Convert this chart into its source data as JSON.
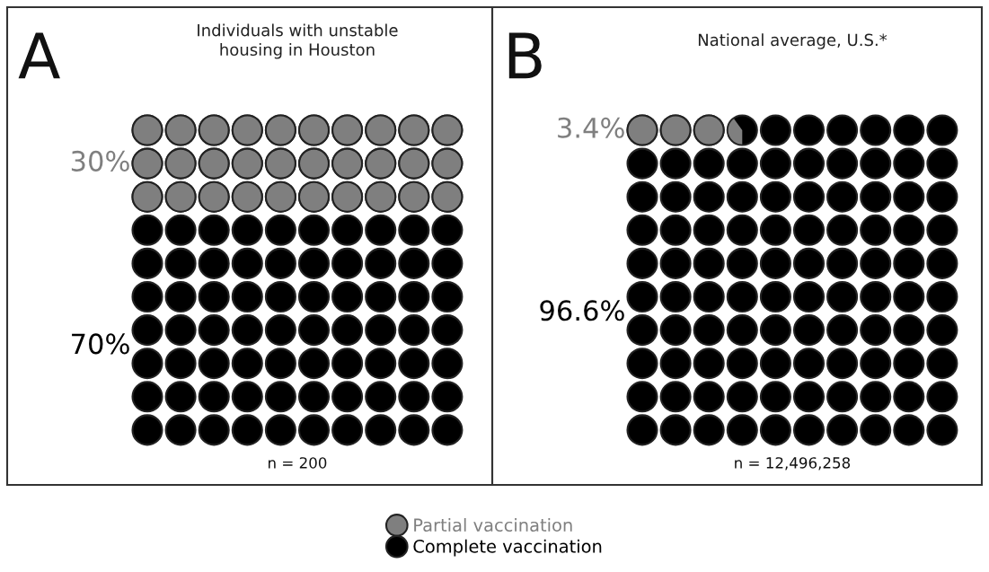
{
  "chart_data": [
    {
      "type": "other",
      "title": "Individuals with unstable\nhousing in Houston",
      "categories": [
        "Partial vaccination",
        "Complete vaccination"
      ],
      "values": [
        30,
        70
      ],
      "value_labels": [
        "30%",
        "70%"
      ],
      "colors": [
        "#7f7f7f",
        "#000000"
      ],
      "annotations": [
        "A",
        "n = 200"
      ]
    },
    {
      "type": "other",
      "title": "National average, U.S.*",
      "values": [
        3.4,
        96.6
      ],
      "value_labels": [
        "3.4%",
        "96.6%"
      ],
      "colors": [
        "#7f7f7f",
        "#000000"
      ],
      "annotations": [
        "B",
        "n = 12,496,258"
      ]
    }
  ]
}
